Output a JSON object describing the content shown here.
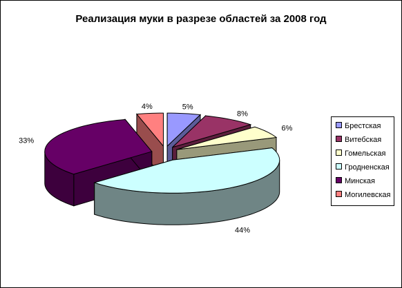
{
  "chart_data": {
    "type": "pie",
    "title": "Реализация муки в разрезе областей за 2008 год",
    "legend_position": "right",
    "exploded": true,
    "three_d": true,
    "slices": [
      {
        "name": "Брестская",
        "value": 5,
        "label": "5%",
        "color": "#9999FF",
        "side_color": "#5C5C99"
      },
      {
        "name": "Витебская",
        "value": 8,
        "label": "8%",
        "color": "#993366",
        "side_color": "#5C1F3D"
      },
      {
        "name": "Гомельская",
        "value": 6,
        "label": "6%",
        "color": "#FFFFCC",
        "side_color": "#99997A"
      },
      {
        "name": "Гродненская",
        "value": 44,
        "label": "44%",
        "color": "#CCFFFF",
        "side_color": "#6F8585"
      },
      {
        "name": "Минская",
        "value": 33,
        "label": "33%",
        "color": "#660066",
        "side_color": "#3D003D"
      },
      {
        "name": "Могилевская",
        "value": 4,
        "label": "4%",
        "color": "#FF8080",
        "side_color": "#994D4D"
      }
    ]
  }
}
